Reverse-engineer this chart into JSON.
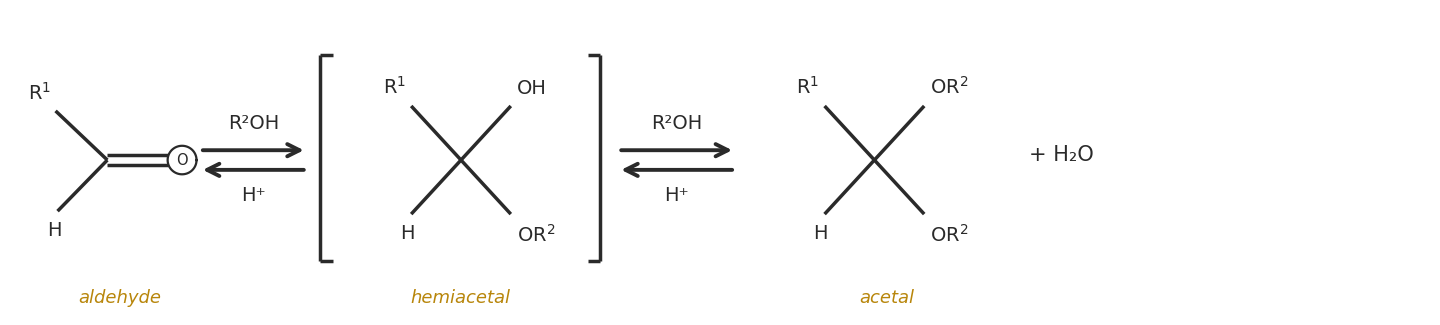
{
  "bg_color": "#ffffff",
  "text_color": "#2a2a2a",
  "label_color": "#b8860b",
  "figsize": [
    14.4,
    3.25
  ],
  "dpi": 100,
  "aldehyde_label": "aldehyde",
  "hemiacetal_label": "hemiacetal",
  "acetal_label": "acetal",
  "arrow1_top": "R²OH",
  "arrow1_bot": "H⁺",
  "arrow2_top": "R²OH",
  "arrow2_bot": "H⁺",
  "plus_water": "+ H₂O",
  "font_size": 14,
  "label_font_size": 13,
  "bond_lw": 2.5,
  "arrow_lw": 2.8,
  "xlim": [
    0,
    14.4
  ],
  "ylim": [
    0,
    3.25
  ]
}
